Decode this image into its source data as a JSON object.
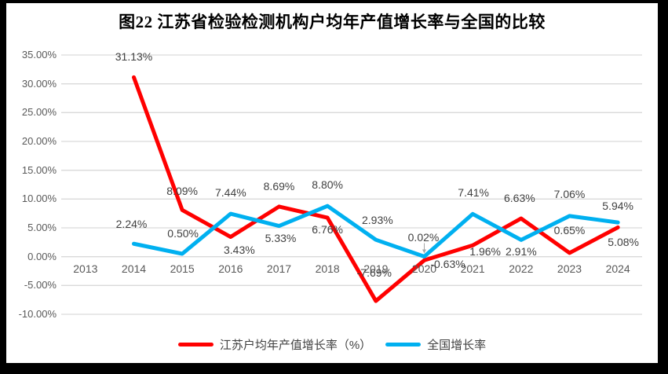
{
  "title": "图22  江苏省检验检测机构户均年产值增长率与全国的比较",
  "colors": {
    "frame": "#000000",
    "background": "#FFFFFF",
    "grid": "#D9D9D9",
    "axis_text": "#595959",
    "data_label": "#404040",
    "leader": "#A6A6A6",
    "jiangsu_red": "#FF0000",
    "national_blue": "#00B0F0"
  },
  "chart_data": {
    "type": "line",
    "title": "图22  江苏省检验检测机构户均年产值增长率与全国的比较",
    "categories": [
      "2013",
      "2014",
      "2015",
      "2016",
      "2017",
      "2018",
      "2019",
      "2020",
      "2021",
      "2022",
      "2023",
      "2024"
    ],
    "series": [
      {
        "name": "江苏户均年产值增长率（%）",
        "color": "#FF0000",
        "values": [
          null,
          31.13,
          8.09,
          3.43,
          8.69,
          6.76,
          -7.69,
          -0.63,
          1.96,
          6.63,
          0.65,
          5.08
        ],
        "label_offsets": [
          null,
          [
            0,
            -26
          ],
          [
            0,
            -24
          ],
          [
            11,
            16
          ],
          [
            0,
            -26
          ],
          [
            0,
            15
          ],
          [
            -2,
            -36
          ],
          [
            30,
            5
          ],
          [
            16,
            8
          ],
          [
            -2,
            -26
          ],
          [
            0,
            -29
          ],
          [
            7,
            19
          ]
        ]
      },
      {
        "name": "全国增长率",
        "color": "#00B0F0",
        "values": [
          null,
          2.24,
          0.5,
          7.44,
          5.33,
          8.8,
          2.93,
          0.02,
          7.41,
          2.91,
          7.06,
          5.94
        ],
        "label_offsets": [
          null,
          [
            -3,
            -25
          ],
          [
            1,
            -26
          ],
          [
            0,
            -27
          ],
          [
            2,
            15
          ],
          [
            0,
            -27
          ],
          [
            2,
            -25
          ],
          [
            -1,
            -25
          ],
          [
            1,
            -27
          ],
          [
            0,
            15
          ],
          [
            0,
            -28
          ],
          [
            0,
            -21
          ]
        ]
      }
    ],
    "ylim": [
      -10,
      35
    ],
    "ytick_step": 5,
    "ytick_format": "0.00%",
    "value_label_format": "0.00%",
    "xlabel": "",
    "ylabel": "",
    "grid": true,
    "legend_position": "bottom",
    "callout": {
      "series_index": 1,
      "point_index": 7
    }
  },
  "legend": {
    "items": [
      {
        "label": "江苏户均年产值增长率（%）",
        "color": "#FF0000"
      },
      {
        "label": "全国增长率",
        "color": "#00B0F0"
      }
    ]
  }
}
